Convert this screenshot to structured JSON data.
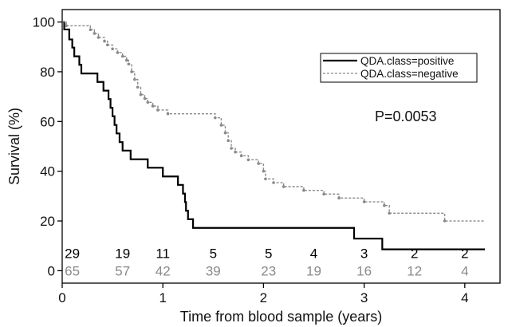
{
  "chart_data": {
    "type": "line",
    "subtype": "kaplan-meier",
    "title": "",
    "xlabel": "Time from blood sample (years)",
    "ylabel": "Survival (%)",
    "xlim": [
      0,
      4.35
    ],
    "ylim": [
      -5,
      105
    ],
    "xticks": [
      0,
      1,
      2,
      3,
      4
    ],
    "yticks": [
      0,
      20,
      40,
      60,
      80,
      100
    ],
    "grid": false,
    "legend_position": "top-right",
    "annotation": "P=0.0053",
    "series": [
      {
        "name": "QDA.class=positive",
        "color": "#000000",
        "dash": "solid",
        "points": [
          [
            0,
            100
          ],
          [
            0.02,
            100
          ],
          [
            0.02,
            97
          ],
          [
            0.07,
            97
          ],
          [
            0.07,
            93
          ],
          [
            0.1,
            93
          ],
          [
            0.1,
            89.7
          ],
          [
            0.12,
            89.7
          ],
          [
            0.12,
            86.2
          ],
          [
            0.17,
            86.2
          ],
          [
            0.17,
            82.8
          ],
          [
            0.19,
            82.8
          ],
          [
            0.19,
            79.3
          ],
          [
            0.35,
            79.3
          ],
          [
            0.35,
            75.9
          ],
          [
            0.41,
            75.9
          ],
          [
            0.41,
            72.4
          ],
          [
            0.46,
            72.4
          ],
          [
            0.46,
            69
          ],
          [
            0.48,
            69
          ],
          [
            0.48,
            65.5
          ],
          [
            0.5,
            65.5
          ],
          [
            0.5,
            62.1
          ],
          [
            0.52,
            62.1
          ],
          [
            0.52,
            58.6
          ],
          [
            0.54,
            58.6
          ],
          [
            0.54,
            55.2
          ],
          [
            0.57,
            55.2
          ],
          [
            0.57,
            51.7
          ],
          [
            0.6,
            51.7
          ],
          [
            0.6,
            48.3
          ],
          [
            0.68,
            48.3
          ],
          [
            0.68,
            44.8
          ],
          [
            0.85,
            44.8
          ],
          [
            0.85,
            41.4
          ],
          [
            1.0,
            41.4
          ],
          [
            1.0,
            37.9
          ],
          [
            1.15,
            37.9
          ],
          [
            1.15,
            34.5
          ],
          [
            1.2,
            34.5
          ],
          [
            1.2,
            31
          ],
          [
            1.22,
            31
          ],
          [
            1.22,
            27.6
          ],
          [
            1.23,
            27.6
          ],
          [
            1.23,
            24.1
          ],
          [
            1.25,
            24.1
          ],
          [
            1.25,
            20.7
          ],
          [
            1.3,
            20.7
          ],
          [
            1.3,
            17.2
          ],
          [
            2.9,
            17.2
          ],
          [
            2.9,
            12.9
          ],
          [
            3.18,
            12.9
          ],
          [
            3.18,
            8.6
          ],
          [
            4.2,
            8.6
          ]
        ]
      },
      {
        "name": "QDA.class=negative",
        "color": "#8a8a8a",
        "dash": "dashed",
        "points": [
          [
            0,
            100
          ],
          [
            0.04,
            100
          ],
          [
            0.04,
            98.5
          ],
          [
            0.28,
            98.5
          ],
          [
            0.28,
            96.9
          ],
          [
            0.32,
            96.9
          ],
          [
            0.32,
            95.4
          ],
          [
            0.36,
            95.4
          ],
          [
            0.36,
            93.8
          ],
          [
            0.42,
            93.8
          ],
          [
            0.42,
            92.3
          ],
          [
            0.45,
            92.3
          ],
          [
            0.45,
            90.8
          ],
          [
            0.5,
            90.8
          ],
          [
            0.5,
            89.2
          ],
          [
            0.55,
            89.2
          ],
          [
            0.55,
            87.7
          ],
          [
            0.6,
            87.7
          ],
          [
            0.6,
            86.2
          ],
          [
            0.64,
            86.2
          ],
          [
            0.64,
            84.6
          ],
          [
            0.66,
            84.6
          ],
          [
            0.66,
            83.1
          ],
          [
            0.69,
            83.1
          ],
          [
            0.69,
            80
          ],
          [
            0.72,
            80
          ],
          [
            0.72,
            76.9
          ],
          [
            0.75,
            76.9
          ],
          [
            0.75,
            73.8
          ],
          [
            0.78,
            73.8
          ],
          [
            0.78,
            70.8
          ],
          [
            0.82,
            70.8
          ],
          [
            0.82,
            69.2
          ],
          [
            0.85,
            69.2
          ],
          [
            0.85,
            67.7
          ],
          [
            0.9,
            67.7
          ],
          [
            0.9,
            66.2
          ],
          [
            0.95,
            66.2
          ],
          [
            0.95,
            64.6
          ],
          [
            1.05,
            64.6
          ],
          [
            1.05,
            63.1
          ],
          [
            1.52,
            63.1
          ],
          [
            1.52,
            61.5
          ],
          [
            1.58,
            61.5
          ],
          [
            1.58,
            58.5
          ],
          [
            1.62,
            58.5
          ],
          [
            1.62,
            55.4
          ],
          [
            1.65,
            55.4
          ],
          [
            1.65,
            52.3
          ],
          [
            1.68,
            52.3
          ],
          [
            1.68,
            49.2
          ],
          [
            1.72,
            49.2
          ],
          [
            1.72,
            47.7
          ],
          [
            1.78,
            47.7
          ],
          [
            1.78,
            46.2
          ],
          [
            1.85,
            46.2
          ],
          [
            1.85,
            44.6
          ],
          [
            1.95,
            44.6
          ],
          [
            1.95,
            43.1
          ],
          [
            2.0,
            43.1
          ],
          [
            2.0,
            40
          ],
          [
            2.02,
            40
          ],
          [
            2.02,
            36.9
          ],
          [
            2.1,
            36.9
          ],
          [
            2.1,
            35.4
          ],
          [
            2.2,
            35.4
          ],
          [
            2.2,
            33.8
          ],
          [
            2.4,
            33.8
          ],
          [
            2.4,
            32.3
          ],
          [
            2.6,
            32.3
          ],
          [
            2.6,
            30.8
          ],
          [
            2.75,
            30.8
          ],
          [
            2.75,
            29.2
          ],
          [
            3.0,
            29.2
          ],
          [
            3.0,
            27.7
          ],
          [
            3.2,
            27.7
          ],
          [
            3.2,
            26.2
          ],
          [
            3.25,
            26.2
          ],
          [
            3.25,
            23.1
          ],
          [
            3.8,
            23.1
          ],
          [
            3.8,
            20
          ],
          [
            4.2,
            20
          ]
        ]
      }
    ],
    "risk_table": {
      "x": [
        0.1,
        0.6,
        1.0,
        1.5,
        2.05,
        2.5,
        3.0,
        3.5,
        4.0
      ],
      "rows": [
        {
          "name": "QDA.class=positive",
          "color": "#000000",
          "y": 7,
          "values": [
            "29",
            "19",
            "11",
            "5",
            "5",
            "4",
            "3",
            "2",
            "2"
          ]
        },
        {
          "name": "QDA.class=negative",
          "color": "#8a8a8a",
          "y": 0,
          "values": [
            "65",
            "57",
            "42",
            "39",
            "23",
            "19",
            "16",
            "12",
            "4"
          ]
        }
      ]
    }
  }
}
